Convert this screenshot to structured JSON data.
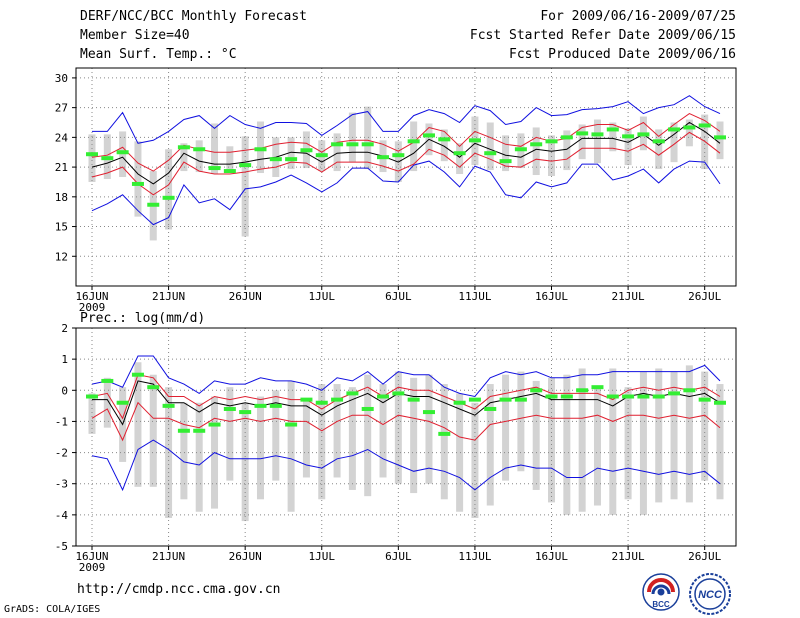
{
  "header": {
    "title": "DERF/NCC/BCC Monthly Forecast",
    "member_size": "Member Size=40",
    "variable": "Mean Surf. Temp.: °C",
    "period": "For 2009/06/16-2009/07/25",
    "started": "Fcst Started Refer Date 2009/06/15",
    "produced": "Fcst Produced Date 2009/06/16"
  },
  "footer": {
    "url": "http://cmdp.ncc.cma.gov.cn",
    "grads": "GrADS: COLA/IGES",
    "logo_left_text": "BCC",
    "logo_right_text": "NCC"
  },
  "colors": {
    "bar": "#d3d3d3",
    "mean": "#000000",
    "inner_band": "#e02030",
    "outer_band": "#1010e0",
    "marker": "#33ee33",
    "grid": "#888888"
  },
  "chart_data": [
    {
      "type": "line",
      "title": "Mean Surf. Temp.: °C",
      "x_ticks": [
        "16JUN",
        "21JUN",
        "26JUN",
        "1JUL",
        "6JUL",
        "11JUL",
        "16JUL",
        "21JUL",
        "26JUL"
      ],
      "x_tick_index": [
        0,
        5,
        10,
        15,
        20,
        25,
        30,
        35,
        40
      ],
      "x_sublabel": "2009",
      "ylim": [
        9,
        31
      ],
      "yticks": [
        12,
        15,
        18,
        21,
        24,
        27,
        30
      ],
      "mean": [
        21,
        21.4,
        22,
        20.3,
        19.3,
        20.4,
        22.4,
        21.6,
        21.3,
        21.3,
        21.5,
        21.8,
        22,
        22.5,
        22.4,
        21.5,
        22.4,
        22.5,
        22.5,
        22.1,
        21.5,
        22.4,
        23.8,
        23.1,
        22,
        23.4,
        22.8,
        22.2,
        22,
        22.8,
        22.6,
        22.8,
        23.9,
        23.9,
        23.9,
        23.5,
        24.3,
        23.2,
        24.3,
        25.5,
        24.6,
        23.4
      ],
      "band_inner_upper": [
        22,
        22.2,
        23,
        21.4,
        20.6,
        21.7,
        23.2,
        22.8,
        22.5,
        22.5,
        22.7,
        22.9,
        23.3,
        23.5,
        23.4,
        22.5,
        23.5,
        23.7,
        23.7,
        23.3,
        22.6,
        23.5,
        25,
        24.6,
        23.1,
        24.6,
        24,
        23.3,
        23.1,
        24,
        23.6,
        23.9,
        25,
        25.3,
        25.3,
        24.7,
        25.5,
        24.1,
        25.3,
        26.4,
        25.7,
        24.6
      ],
      "band_inner_lower": [
        20,
        20.4,
        21,
        19.3,
        18.2,
        19.2,
        21.5,
        20.6,
        20.3,
        20.3,
        20.5,
        20.8,
        21,
        21.5,
        21.4,
        20.5,
        21.5,
        21.5,
        21.5,
        21.1,
        20.6,
        21.3,
        22.8,
        22.2,
        21,
        22.4,
        21.8,
        21.1,
        21,
        21.8,
        21.6,
        21.8,
        22.9,
        22.9,
        22.9,
        22.6,
        23.3,
        22.2,
        23.3,
        24.5,
        23.6,
        22.4
      ],
      "band_outer_upper": [
        24.6,
        24.6,
        26.5,
        23.4,
        23.7,
        24.6,
        25.8,
        26.2,
        24.9,
        26.2,
        25.3,
        24.9,
        25.5,
        25.5,
        25.4,
        24.2,
        25.2,
        26.3,
        26.6,
        24.6,
        24.6,
        26.2,
        26.8,
        26.4,
        25.5,
        27.2,
        26.7,
        25.3,
        25.6,
        27,
        26.2,
        26.3,
        26.8,
        26.9,
        27.1,
        27.6,
        26.4,
        27,
        27.3,
        28.2,
        27.1,
        26.4
      ],
      "band_outer_lower": [
        16.6,
        17.3,
        18.2,
        16.6,
        15.2,
        15.9,
        19.2,
        17.4,
        17.8,
        16.7,
        18.8,
        19,
        19.5,
        20.2,
        19.4,
        18.5,
        19.4,
        20.9,
        20.9,
        19.6,
        19.5,
        21.2,
        21.6,
        20.5,
        19,
        21.1,
        20.5,
        18.2,
        17.9,
        19.5,
        19,
        19.4,
        21.3,
        21.3,
        19.7,
        20.1,
        20.8,
        19.4,
        20.8,
        21.6,
        21.5,
        19.3
      ],
      "bar_low": [
        19.5,
        19.8,
        20,
        16,
        13.6,
        14.7,
        20.6,
        20.5,
        20.3,
        20.7,
        14,
        20.4,
        20,
        20.8,
        20.9,
        20.6,
        20.6,
        21.5,
        20.8,
        20.5,
        19.5,
        20.6,
        22.2,
        21.6,
        20.3,
        21.2,
        20.7,
        20.6,
        20.9,
        20.2,
        20.1,
        20.7,
        21.8,
        21.4,
        22.6,
        21.2,
        22.7,
        20.8,
        21.5,
        23.1,
        20.8,
        21.8
      ],
      "bar_high": [
        24.3,
        24.3,
        24.6,
        23.6,
        20.6,
        22.8,
        23.4,
        23.7,
        25.4,
        23.1,
        24.1,
        25.6,
        24,
        24,
        24.6,
        23.7,
        24.4,
        26.5,
        27.1,
        23.7,
        23.6,
        25.6,
        25.4,
        24.8,
        23.4,
        26.1,
        25.5,
        24.2,
        24.4,
        25,
        24.2,
        24.7,
        25.3,
        25.8,
        25.5,
        24.9,
        26.1,
        24.8,
        25.5,
        25.8,
        26.3,
        25.6
      ],
      "marker": [
        22.3,
        21.9,
        22.5,
        19.3,
        17.2,
        17.9,
        23,
        22.8,
        20.9,
        20.6,
        21.2,
        22.8,
        21.8,
        21.8,
        22.7,
        22.2,
        23.3,
        23.3,
        23.3,
        22,
        22.2,
        23.6,
        24.2,
        23.8,
        22.4,
        23.7,
        22.4,
        21.6,
        22.8,
        23.3,
        23.6,
        24,
        24.4,
        24.3,
        24.8,
        24.1,
        24.3,
        23.6,
        24.8,
        25,
        25.2,
        24
      ]
    },
    {
      "type": "line",
      "title": "Prec.: log(mm/d)",
      "x_ticks": [
        "16JUN",
        "21JUN",
        "26JUN",
        "1JUL",
        "6JUL",
        "11JUL",
        "16JUL",
        "21JUL",
        "26JUL"
      ],
      "x_tick_index": [
        0,
        5,
        10,
        15,
        20,
        25,
        30,
        35,
        40
      ],
      "x_sublabel": "2009",
      "ylim": [
        -5,
        2
      ],
      "yticks": [
        -5,
        -4,
        -3,
        -2,
        -1,
        0,
        1,
        2
      ],
      "mean": [
        -0.3,
        -0.3,
        -1.1,
        0.3,
        0.2,
        -0.4,
        -0.4,
        -0.7,
        -0.4,
        -0.5,
        -0.4,
        -0.5,
        -0.4,
        -0.5,
        -0.5,
        -0.8,
        -0.5,
        -0.3,
        -0.1,
        -0.4,
        -0.1,
        -0.2,
        -0.2,
        -0.4,
        -0.6,
        -0.8,
        -0.4,
        -0.3,
        -0.2,
        -0.1,
        -0.3,
        -0.3,
        -0.3,
        -0.3,
        -0.5,
        -0.2,
        -0.1,
        -0.2,
        -0.1,
        -0.2,
        -0.1,
        -0.4
      ],
      "band_inner_upper": [
        -0.2,
        -0.1,
        -0.9,
        0.5,
        0.4,
        -0.2,
        -0.2,
        -0.5,
        -0.2,
        -0.3,
        -0.2,
        -0.3,
        -0.2,
        -0.3,
        -0.3,
        -0.6,
        -0.3,
        -0.1,
        0.1,
        -0.2,
        0.1,
        0,
        0,
        -0.2,
        -0.4,
        -0.6,
        -0.2,
        -0.1,
        0,
        0.1,
        -0.1,
        -0.1,
        -0.1,
        -0.1,
        -0.3,
        0,
        0.1,
        0,
        0.1,
        0,
        0.1,
        -0.2
      ],
      "band_inner_lower": [
        -0.9,
        -0.6,
        -1.6,
        -0.4,
        -0.9,
        -0.9,
        -1.1,
        -1.2,
        -0.9,
        -1,
        -0.9,
        -1,
        -0.9,
        -1,
        -1,
        -1.3,
        -1,
        -0.8,
        -0.8,
        -1.1,
        -0.8,
        -0.9,
        -1,
        -1.2,
        -1.5,
        -1.6,
        -1.1,
        -1,
        -0.9,
        -0.8,
        -0.9,
        -0.9,
        -0.9,
        -0.8,
        -1,
        -0.8,
        -0.8,
        -0.9,
        -0.8,
        -0.9,
        -0.8,
        -1.2
      ],
      "band_outer_upper": [
        0.2,
        0.3,
        0.1,
        1.1,
        1.1,
        0.4,
        0.2,
        -0.1,
        0.3,
        0.2,
        0.2,
        0.4,
        0.3,
        0.3,
        0.2,
        0,
        0.4,
        0.3,
        0.6,
        0.2,
        0.6,
        0.5,
        0.5,
        0.1,
        -0.1,
        -0.2,
        0.4,
        0.6,
        0.5,
        0.6,
        0.4,
        0.4,
        0.5,
        0.5,
        0.6,
        0.6,
        0.6,
        0.6,
        0.6,
        0.6,
        0.8,
        0.3
      ],
      "band_outer_lower": [
        -2.1,
        -2.2,
        -3.2,
        -1.9,
        -1.6,
        -1.9,
        -2.3,
        -2.4,
        -2,
        -2.2,
        -2.2,
        -2.2,
        -2.1,
        -2.2,
        -2.4,
        -2.5,
        -2.2,
        -2.1,
        -1.9,
        -2.2,
        -2.4,
        -2.6,
        -2.5,
        -2.6,
        -2.8,
        -3.2,
        -2.8,
        -2.5,
        -2.4,
        -2.5,
        -2.5,
        -2.8,
        -2.8,
        -2.5,
        -2.6,
        -2.5,
        -2.6,
        -2.7,
        -2.6,
        -2.7,
        -2.6,
        -3
      ],
      "bar_low": [
        -1.4,
        -1.2,
        -2.3,
        -3.1,
        -3.1,
        -4.1,
        -3.5,
        -3.9,
        -3.8,
        -2.9,
        -4.2,
        -3.5,
        -2.9,
        -3.9,
        -2.8,
        -3.5,
        -2.8,
        -3.2,
        -3.4,
        -2.8,
        -3,
        -3.3,
        -3,
        -3.5,
        -3.9,
        -4.1,
        -3.7,
        -2.9,
        -2.6,
        -3.2,
        -3.6,
        -4,
        -3.9,
        -3.7,
        -4,
        -3.5,
        -4,
        -3.6,
        -3.5,
        -3.6,
        -2.9,
        -3.5
      ],
      "bar_high": [
        -0.1,
        0.4,
        0.1,
        0.9,
        0.5,
        0.1,
        -0.4,
        -0.4,
        -0.2,
        0.1,
        -0.4,
        -0.2,
        0,
        0.3,
        -0.3,
        0.2,
        0.2,
        0.1,
        0.5,
        0.2,
        0.6,
        0.4,
        0.5,
        0.2,
        -0.1,
        -0.4,
        0.2,
        0.5,
        0.6,
        0.3,
        0.4,
        0.5,
        0.7,
        0.1,
        0.7,
        0.1,
        0.6,
        0.7,
        0.6,
        0.8,
        0.6,
        0.2
      ],
      "marker": [
        -0.2,
        0.3,
        -0.4,
        0.5,
        0.1,
        -0.5,
        -1.3,
        -1.3,
        -1.1,
        -0.6,
        -0.7,
        -0.5,
        -0.5,
        -1.1,
        -0.3,
        -0.4,
        -0.3,
        -0.1,
        -0.6,
        -0.2,
        -0.1,
        -0.3,
        -0.7,
        -1.4,
        -0.4,
        -0.3,
        -0.6,
        -0.3,
        -0.3,
        0,
        -0.2,
        -0.2,
        0,
        0.1,
        -0.2,
        -0.2,
        -0.2,
        -0.2,
        -0.1,
        0,
        -0.3,
        -0.4
      ]
    }
  ]
}
